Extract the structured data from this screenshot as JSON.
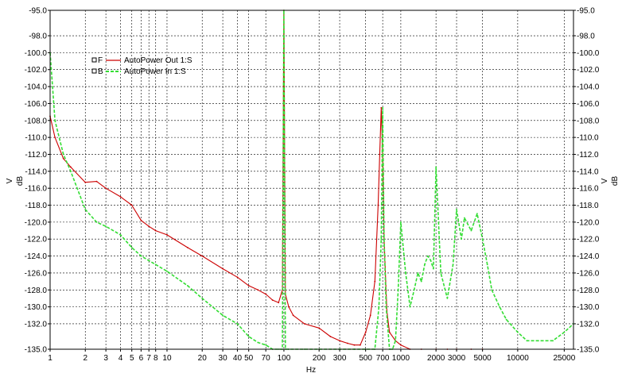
{
  "chart_data": {
    "type": "line",
    "xlabel": "Hz",
    "ylabel_left_unit": "V",
    "ylabel_left": "dB",
    "ylabel_right_unit": "V",
    "ylabel_right": "dB",
    "xscale": "log",
    "xlim": [
      1,
      30000
    ],
    "ylim": [
      -135.0,
      -95.0
    ],
    "grid": true,
    "x_ticks": [
      1,
      2,
      3,
      4,
      5,
      6,
      7,
      8,
      10,
      20,
      30,
      40,
      50,
      70,
      100,
      200,
      300,
      500,
      700,
      1000,
      2000,
      3000,
      5000,
      10000,
      25000
    ],
    "x_tick_labels": [
      "1",
      "2",
      "3",
      "4",
      "5",
      "6",
      "7",
      "8",
      "10",
      "20",
      "30",
      "40",
      "50",
      "70",
      "100",
      "200",
      "300",
      "500",
      "700",
      "1000",
      "2000",
      "3000",
      "5000",
      "10000",
      "25000"
    ],
    "y_ticks": [
      -95.0,
      -98.0,
      -100.0,
      -102.0,
      -104.0,
      -106.0,
      -108.0,
      -110.0,
      -112.0,
      -114.0,
      -116.0,
      -118.0,
      -120.0,
      -122.0,
      -124.0,
      -126.0,
      -128.0,
      -130.0,
      -132.0,
      -135.0
    ],
    "y_tick_labels": [
      "-95.0",
      "-98.0",
      "-100.0",
      "-102.0",
      "-104.0",
      "-106.0",
      "-108.0",
      "-110.0",
      "-112.0",
      "-114.0",
      "-116.0",
      "-118.0",
      "-120.0",
      "-122.0",
      "-124.0",
      "-126.0",
      "-128.0",
      "-130.0",
      "-132.0",
      "-135.0"
    ],
    "legend_position": "top-left",
    "series": [
      {
        "name": "AutoPower Out 1:S",
        "legend_marker": "F",
        "color": "#cc0000",
        "style": "solid",
        "x": [
          1,
          1.1,
          1.3,
          1.5,
          2,
          2.5,
          3,
          4,
          5,
          6,
          7,
          8,
          10,
          15,
          20,
          30,
          40,
          50,
          60,
          70,
          80,
          90,
          97,
          100,
          103,
          110,
          120,
          150,
          200,
          250,
          300,
          350,
          400,
          450,
          500,
          550,
          600,
          640,
          660,
          680,
          700,
          720,
          760,
          800,
          900,
          1000,
          1200,
          1500,
          2000,
          2500,
          3000,
          4000,
          5000
        ],
        "y": [
          -107.5,
          -110.0,
          -112.5,
          -113.5,
          -115.3,
          -115.2,
          -116.0,
          -117.0,
          -118.0,
          -119.8,
          -120.5,
          -121.0,
          -121.5,
          -123.0,
          -124.0,
          -125.5,
          -126.5,
          -127.5,
          -128.0,
          -128.5,
          -129.2,
          -129.5,
          -128.0,
          -95.0,
          -128.5,
          -130.0,
          -131.0,
          -132.0,
          -132.5,
          -133.5,
          -134.0,
          -134.3,
          -134.5,
          -134.5,
          -133.0,
          -131.0,
          -127.0,
          -118.0,
          -112.0,
          -106.5,
          -112.0,
          -122.0,
          -130.5,
          -133.0,
          -134.0,
          -134.5,
          -135.0,
          -135.0,
          -135.0,
          -135.0,
          -135.0,
          -135.0,
          -135.0
        ]
      },
      {
        "name": "AutoPower In 1:S",
        "legend_marker": "B",
        "color": "#33dd33",
        "style": "dashed",
        "x": [
          1,
          1.1,
          1.3,
          1.5,
          2,
          2.5,
          3,
          4,
          5,
          6,
          8,
          10,
          15,
          20,
          30,
          40,
          50,
          60,
          70,
          80,
          90,
          97,
          100,
          103,
          110,
          150,
          200,
          300,
          400,
          500,
          600,
          650,
          680,
          700,
          720,
          750,
          800,
          850,
          900,
          950,
          1000,
          1100,
          1200,
          1300,
          1400,
          1500,
          1600,
          1700,
          1800,
          1900,
          2000,
          2200,
          2500,
          2800,
          3000,
          3300,
          3500,
          4000,
          4500,
          5000,
          5500,
          6000,
          7000,
          8000,
          10000,
          12000,
          15000,
          20000,
          25000,
          30000
        ],
        "y": [
          -100.0,
          -108.0,
          -112.0,
          -114.0,
          -118.5,
          -120.0,
          -120.5,
          -121.5,
          -123.0,
          -124.0,
          -125.0,
          -125.8,
          -127.5,
          -129.0,
          -131.0,
          -132.0,
          -133.5,
          -134.2,
          -134.5,
          -135.0,
          -135.0,
          -135.0,
          -95.0,
          -135.0,
          -135.0,
          -135.0,
          -135.0,
          -135.0,
          -135.0,
          -135.0,
          -135.0,
          -130.0,
          -122.0,
          -106.5,
          -122.0,
          -130.0,
          -135.0,
          -135.0,
          -134.0,
          -128.0,
          -120.0,
          -126.0,
          -130.0,
          -128.0,
          -126.0,
          -127.0,
          -125.0,
          -124.0,
          -124.5,
          -125.5,
          -113.5,
          -126.0,
          -129.0,
          -125.0,
          -118.5,
          -122.0,
          -119.5,
          -121.0,
          -119.0,
          -122.0,
          -125.0,
          -128.0,
          -130.0,
          -131.5,
          -133.0,
          -134.0,
          -134.0,
          -134.0,
          -133.0,
          -132.0
        ]
      }
    ]
  }
}
